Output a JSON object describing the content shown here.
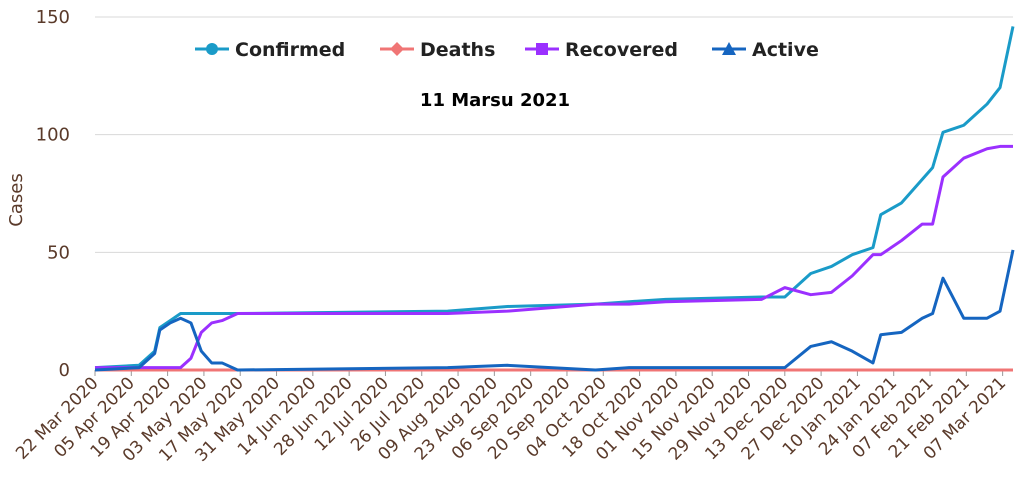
{
  "chart_data": {
    "type": "line",
    "title": "11 Marsu 2021",
    "y_label": "Cases",
    "x": [
      "22 Mar 2020",
      "08 Apr 2020",
      "14 Apr 2020",
      "16 Apr 2020",
      "20 Apr 2020",
      "24 Apr 2020",
      "28 Apr 2020",
      "02 May 2020",
      "06 May 2020",
      "10 May 2020",
      "16 May 2020",
      "05 Aug 2020",
      "28 Aug 2020",
      "01 Oct 2020",
      "14 Oct 2020",
      "28 Oct 2020",
      "04 Dec 2020",
      "13 Dec 2020",
      "23 Dec 2020",
      "31 Dec 2020",
      "08 Jan 2021",
      "16 Jan 2021",
      "19 Jan 2021",
      "27 Jan 2021",
      "04 Feb 2021",
      "08 Feb 2021",
      "12 Feb 2021",
      "20 Feb 2021",
      "01 Mar 2021",
      "06 Mar 2021",
      "11 Mar 2021"
    ],
    "series": [
      {
        "name": "Confirmed",
        "color": "#1a9bc8",
        "marker": "circle",
        "values": [
          1,
          2,
          8,
          18,
          21,
          24,
          24,
          24,
          24,
          24,
          24,
          25,
          27,
          28,
          29,
          30,
          31,
          31,
          41,
          44,
          49,
          52,
          66,
          71,
          81,
          86,
          101,
          104,
          113,
          120,
          146
        ]
      },
      {
        "name": "Deaths",
        "color": "#f07575",
        "marker": "diamond",
        "values": [
          0,
          0,
          0,
          0,
          0,
          0,
          0,
          0,
          0,
          0,
          0,
          0,
          0,
          0,
          0,
          0,
          0,
          0,
          0,
          0,
          0,
          0,
          0,
          0,
          0,
          0,
          0,
          0,
          0,
          0,
          0
        ]
      },
      {
        "name": "Recovered",
        "color": "#9b30ff",
        "marker": "square",
        "values": [
          1,
          1,
          1,
          1,
          1,
          1,
          5,
          16,
          20,
          21,
          24,
          24,
          25,
          28,
          28,
          29,
          30,
          35,
          32,
          33,
          40,
          49,
          49,
          55,
          62,
          62,
          82,
          90,
          94,
          95,
          95
        ]
      },
      {
        "name": "Active",
        "color": "#1565c0",
        "marker": "triangle",
        "values": [
          0,
          1,
          7,
          17,
          20,
          22,
          20,
          8,
          3,
          3,
          0,
          1,
          2,
          0,
          1,
          1,
          1,
          1,
          10,
          12,
          8,
          3,
          15,
          16,
          22,
          24,
          39,
          22,
          22,
          25,
          51
        ]
      }
    ],
    "xlim": [
      "22 Mar 2020",
      "11 Mar 2021"
    ],
    "xticks": [
      "22 Mar 2020",
      "05 Apr 2020",
      "19 Apr 2020",
      "03 May 2020",
      "17 May 2020",
      "31 May 2020",
      "14 Jun 2020",
      "28 Jun 2020",
      "12 Jul 2020",
      "26 Jul 2020",
      "09 Aug 2020",
      "23 Aug 2020",
      "06 Sep 2020",
      "20 Sep 2020",
      "04 Oct 2020",
      "18 Oct 2020",
      "01 Nov 2020",
      "15 Nov 2020",
      "29 Nov 2020",
      "13 Dec 2020",
      "27 Dec 2020",
      "10 Jan 2021",
      "24 Jan 2021",
      "07 Feb 2021",
      "21 Feb 2021",
      "07 Mar 2021"
    ],
    "ylim": [
      0,
      150
    ],
    "yticks": [
      0,
      50,
      100,
      150
    ],
    "grid": true,
    "legend": "top"
  }
}
